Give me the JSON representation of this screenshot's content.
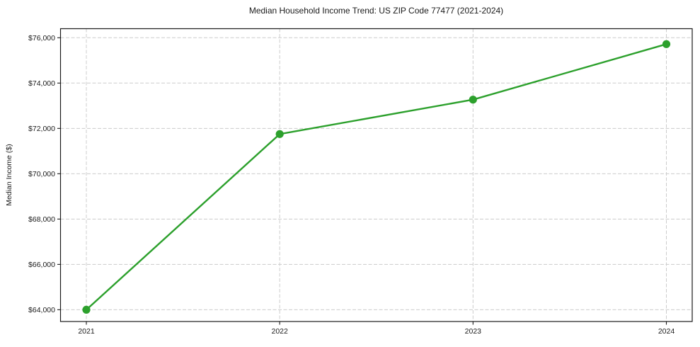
{
  "page": {
    "background_color": "#ffffff"
  },
  "chart_data": {
    "type": "line",
    "title": "Median Household Income Trend: US ZIP Code 77477 (2021-2024)",
    "xlabel": "",
    "ylabel": "Median Income ($)",
    "categories": [
      "2021",
      "2022",
      "2023",
      "2024"
    ],
    "values": [
      64000,
      71750,
      73270,
      75720
    ],
    "yticks": [
      64000,
      66000,
      68000,
      70000,
      72000,
      74000,
      76000
    ],
    "ytick_labels": [
      "$64,000",
      "$66,000",
      "$68,000",
      "$70,000",
      "$72,000",
      "$74,000",
      "$76,000"
    ],
    "ytick_prefix": "$",
    "ylim": [
      63480,
      76400
    ],
    "grid": true,
    "grid_style": "dashed",
    "legend_position": "none",
    "line_color": "#2ca02c",
    "marker_color": "#2ca02c",
    "grid_color": "#cccccc",
    "axis_color": "#1a1a1a",
    "text_color": "#1a1a1a"
  }
}
